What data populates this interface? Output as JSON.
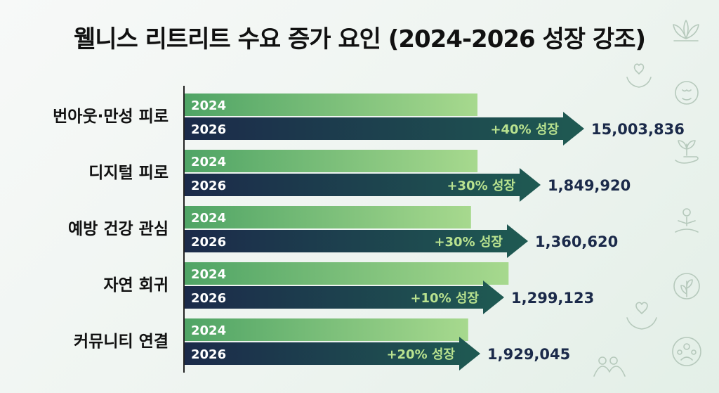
{
  "chart_data": {
    "type": "bar",
    "title": "웰니스 리트리트 수요 증가 요인 (2024-2026 성장 강조)",
    "categories": [
      "번아웃·만성 피로",
      "디지털 피로",
      "예방 건강 관심",
      "자연 회귀",
      "커뮤니티 연결"
    ],
    "series": [
      {
        "name": "2024",
        "values": [
          10717026,
          1423015,
          1046631,
          1180930,
          1607537
        ]
      },
      {
        "name": "2026",
        "values": [
          15003836,
          1849920,
          1360620,
          1299123,
          1929045
        ]
      }
    ],
    "growth_labels": [
      "+40% 성장",
      "+30% 성장",
      "+30% 성장",
      "+10% 성장",
      "+20% 성장"
    ],
    "value_labels": [
      "15,003,836",
      "1,849,920",
      "1,360,620",
      "1,299,123",
      "1,929,045"
    ],
    "xlabel": "",
    "ylabel": "",
    "grid": false,
    "colors": {
      "bar_2024_start": "#4fa465",
      "bar_2024_end": "#a7d98e",
      "bar_2026_start": "#1b2a4a",
      "bar_2026_end": "#1f5a52",
      "growth_text": "#b9e28f",
      "axis": "#222222"
    }
  },
  "icons": [
    "lotus-icon",
    "heart-hands-icon",
    "spa-face-icon",
    "plant-hand-icon",
    "meditation-icon",
    "leaf-icon",
    "care-hands-icon",
    "community-icon",
    "people-hands-icon"
  ]
}
